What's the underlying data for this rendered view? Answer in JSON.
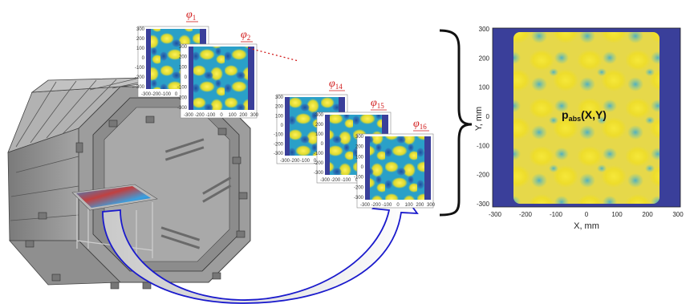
{
  "frames": [
    {
      "id": "phi1",
      "symbol": "φ",
      "sub": "1"
    },
    {
      "id": "phi2",
      "symbol": "φ",
      "sub": "2"
    },
    {
      "id": "phi14",
      "symbol": "φ",
      "sub": "14"
    },
    {
      "id": "phi15",
      "symbol": "φ",
      "sub": "15"
    },
    {
      "id": "phi16",
      "symbol": "φ",
      "sub": "16"
    }
  ],
  "small_ticks": {
    "y": [
      "300",
      "200",
      "100",
      "0",
      "-100",
      "-200",
      "-300"
    ],
    "x": [
      "-300",
      "-200",
      "-100",
      "0",
      "100",
      "200",
      "300"
    ]
  },
  "result_plot": {
    "label_main": "p",
    "label_sub": "abs",
    "label_args": "(X,Y)",
    "xlabel": "X, mm",
    "ylabel": "Y, mm",
    "xticks": [
      "-300",
      "-200",
      "-100",
      "0",
      "100",
      "200",
      "300"
    ],
    "yticks": [
      "300",
      "200",
      "100",
      "0",
      "-100",
      "-200",
      "-300"
    ]
  },
  "colors": {
    "field_yellow": "#f2e21c",
    "field_blue": "#2f6fb5",
    "field_cyan": "#1fa6c9",
    "field_dark": "#3a3f9a",
    "chamber_gray": "#8a8a8a",
    "arrow_blue": "#1a1acc",
    "phi_red": "#d11a1a"
  }
}
